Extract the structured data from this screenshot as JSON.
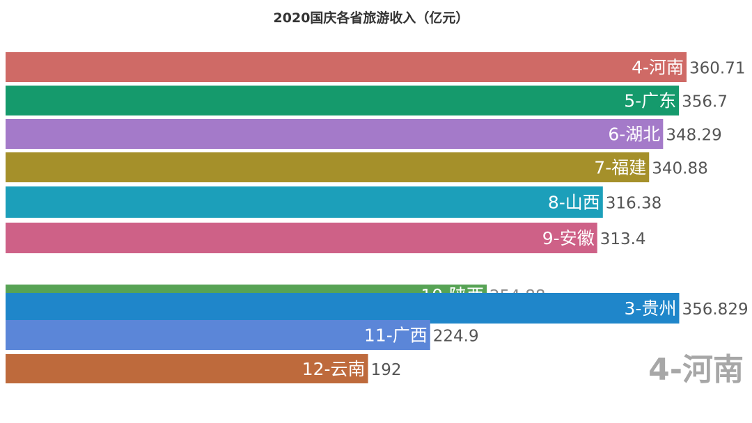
{
  "chart_data": {
    "type": "bar",
    "orientation": "horizontal",
    "title": "2020国庆各省旅游收入（亿元）",
    "xlabel": "",
    "ylabel": "",
    "grid": false,
    "legend": "none",
    "xlim": [
      0,
      360.71
    ],
    "bars": [
      {
        "label": "4-河南",
        "value": 360.71,
        "color": "#cf6a66"
      },
      {
        "label": "5-广东",
        "value": 356.7,
        "color": "#159a6c"
      },
      {
        "label": "6-湖北",
        "value": 348.29,
        "color": "#a47ac9"
      },
      {
        "label": "7-福建",
        "value": 340.88,
        "color": "#a5902a"
      },
      {
        "label": "8-山西",
        "value": 316.38,
        "color": "#1c9fba"
      },
      {
        "label": "9-安徽",
        "value": 313.4,
        "color": "#ce6187"
      },
      {
        "label": "10-陕西",
        "value": 254.88,
        "color": "#57a355"
      },
      {
        "label": "3-贵州",
        "value": 356.829,
        "color": "#1f86ca"
      },
      {
        "label": "11-广西",
        "value": 224.9,
        "color": "#5b86d8"
      },
      {
        "label": "12-云南",
        "value": 192,
        "color": "#be6a3c"
      }
    ],
    "current_label": "4-河南"
  }
}
